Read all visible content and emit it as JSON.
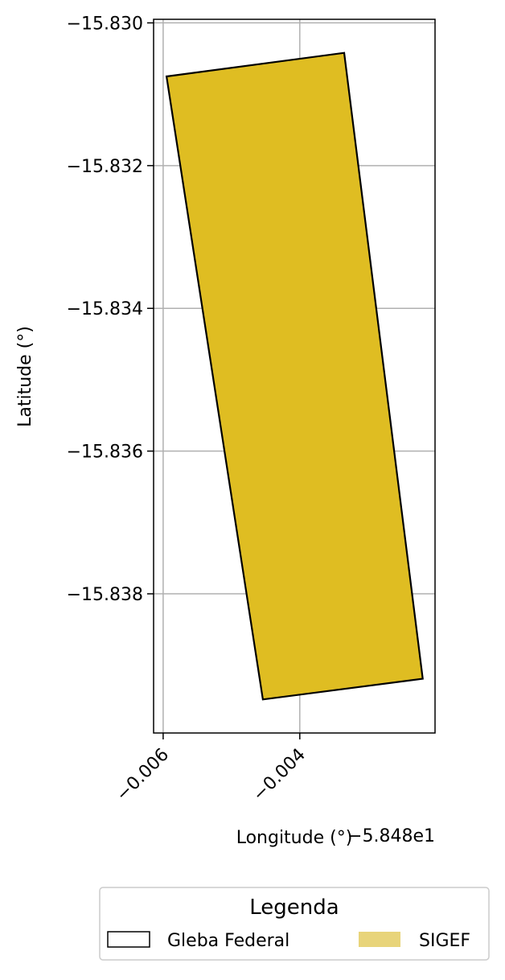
{
  "chart_data": {
    "type": "map",
    "xlabel": "Longitude (°)",
    "ylabel": "Latitude (°)",
    "x_offset_text": "−5.848e1",
    "x_ticks": [
      -0.006,
      -0.004
    ],
    "x_tick_labels": [
      "−0.006",
      "−0.004"
    ],
    "y_ticks": [
      -15.83,
      -15.832,
      -15.834,
      -15.836,
      -15.838
    ],
    "y_tick_labels": [
      "−15.830",
      "−15.832",
      "−15.834",
      "−15.836",
      "−15.838"
    ],
    "xlim": [
      -0.00614,
      -0.00202
    ],
    "ylim": [
      -15.83995,
      -15.82995
    ],
    "grid": true,
    "polygon": {
      "name": "SIGEF",
      "fill": "#DFBD22",
      "stroke": "#000000",
      "points": [
        [
          -0.00595,
          -15.83075
        ],
        [
          -0.00335,
          -15.83042
        ],
        [
          -0.0022,
          -15.83919
        ],
        [
          -0.00454,
          -15.83948
        ]
      ]
    },
    "legend": {
      "title": "Legenda",
      "placement": "bottom-center",
      "items": [
        {
          "label": "Gleba Federal",
          "swatch_fill": "#ffffff",
          "swatch_stroke": "#000000"
        },
        {
          "label": "SIGEF",
          "swatch_fill": "#E8D47A",
          "swatch_stroke": "none"
        }
      ]
    }
  }
}
